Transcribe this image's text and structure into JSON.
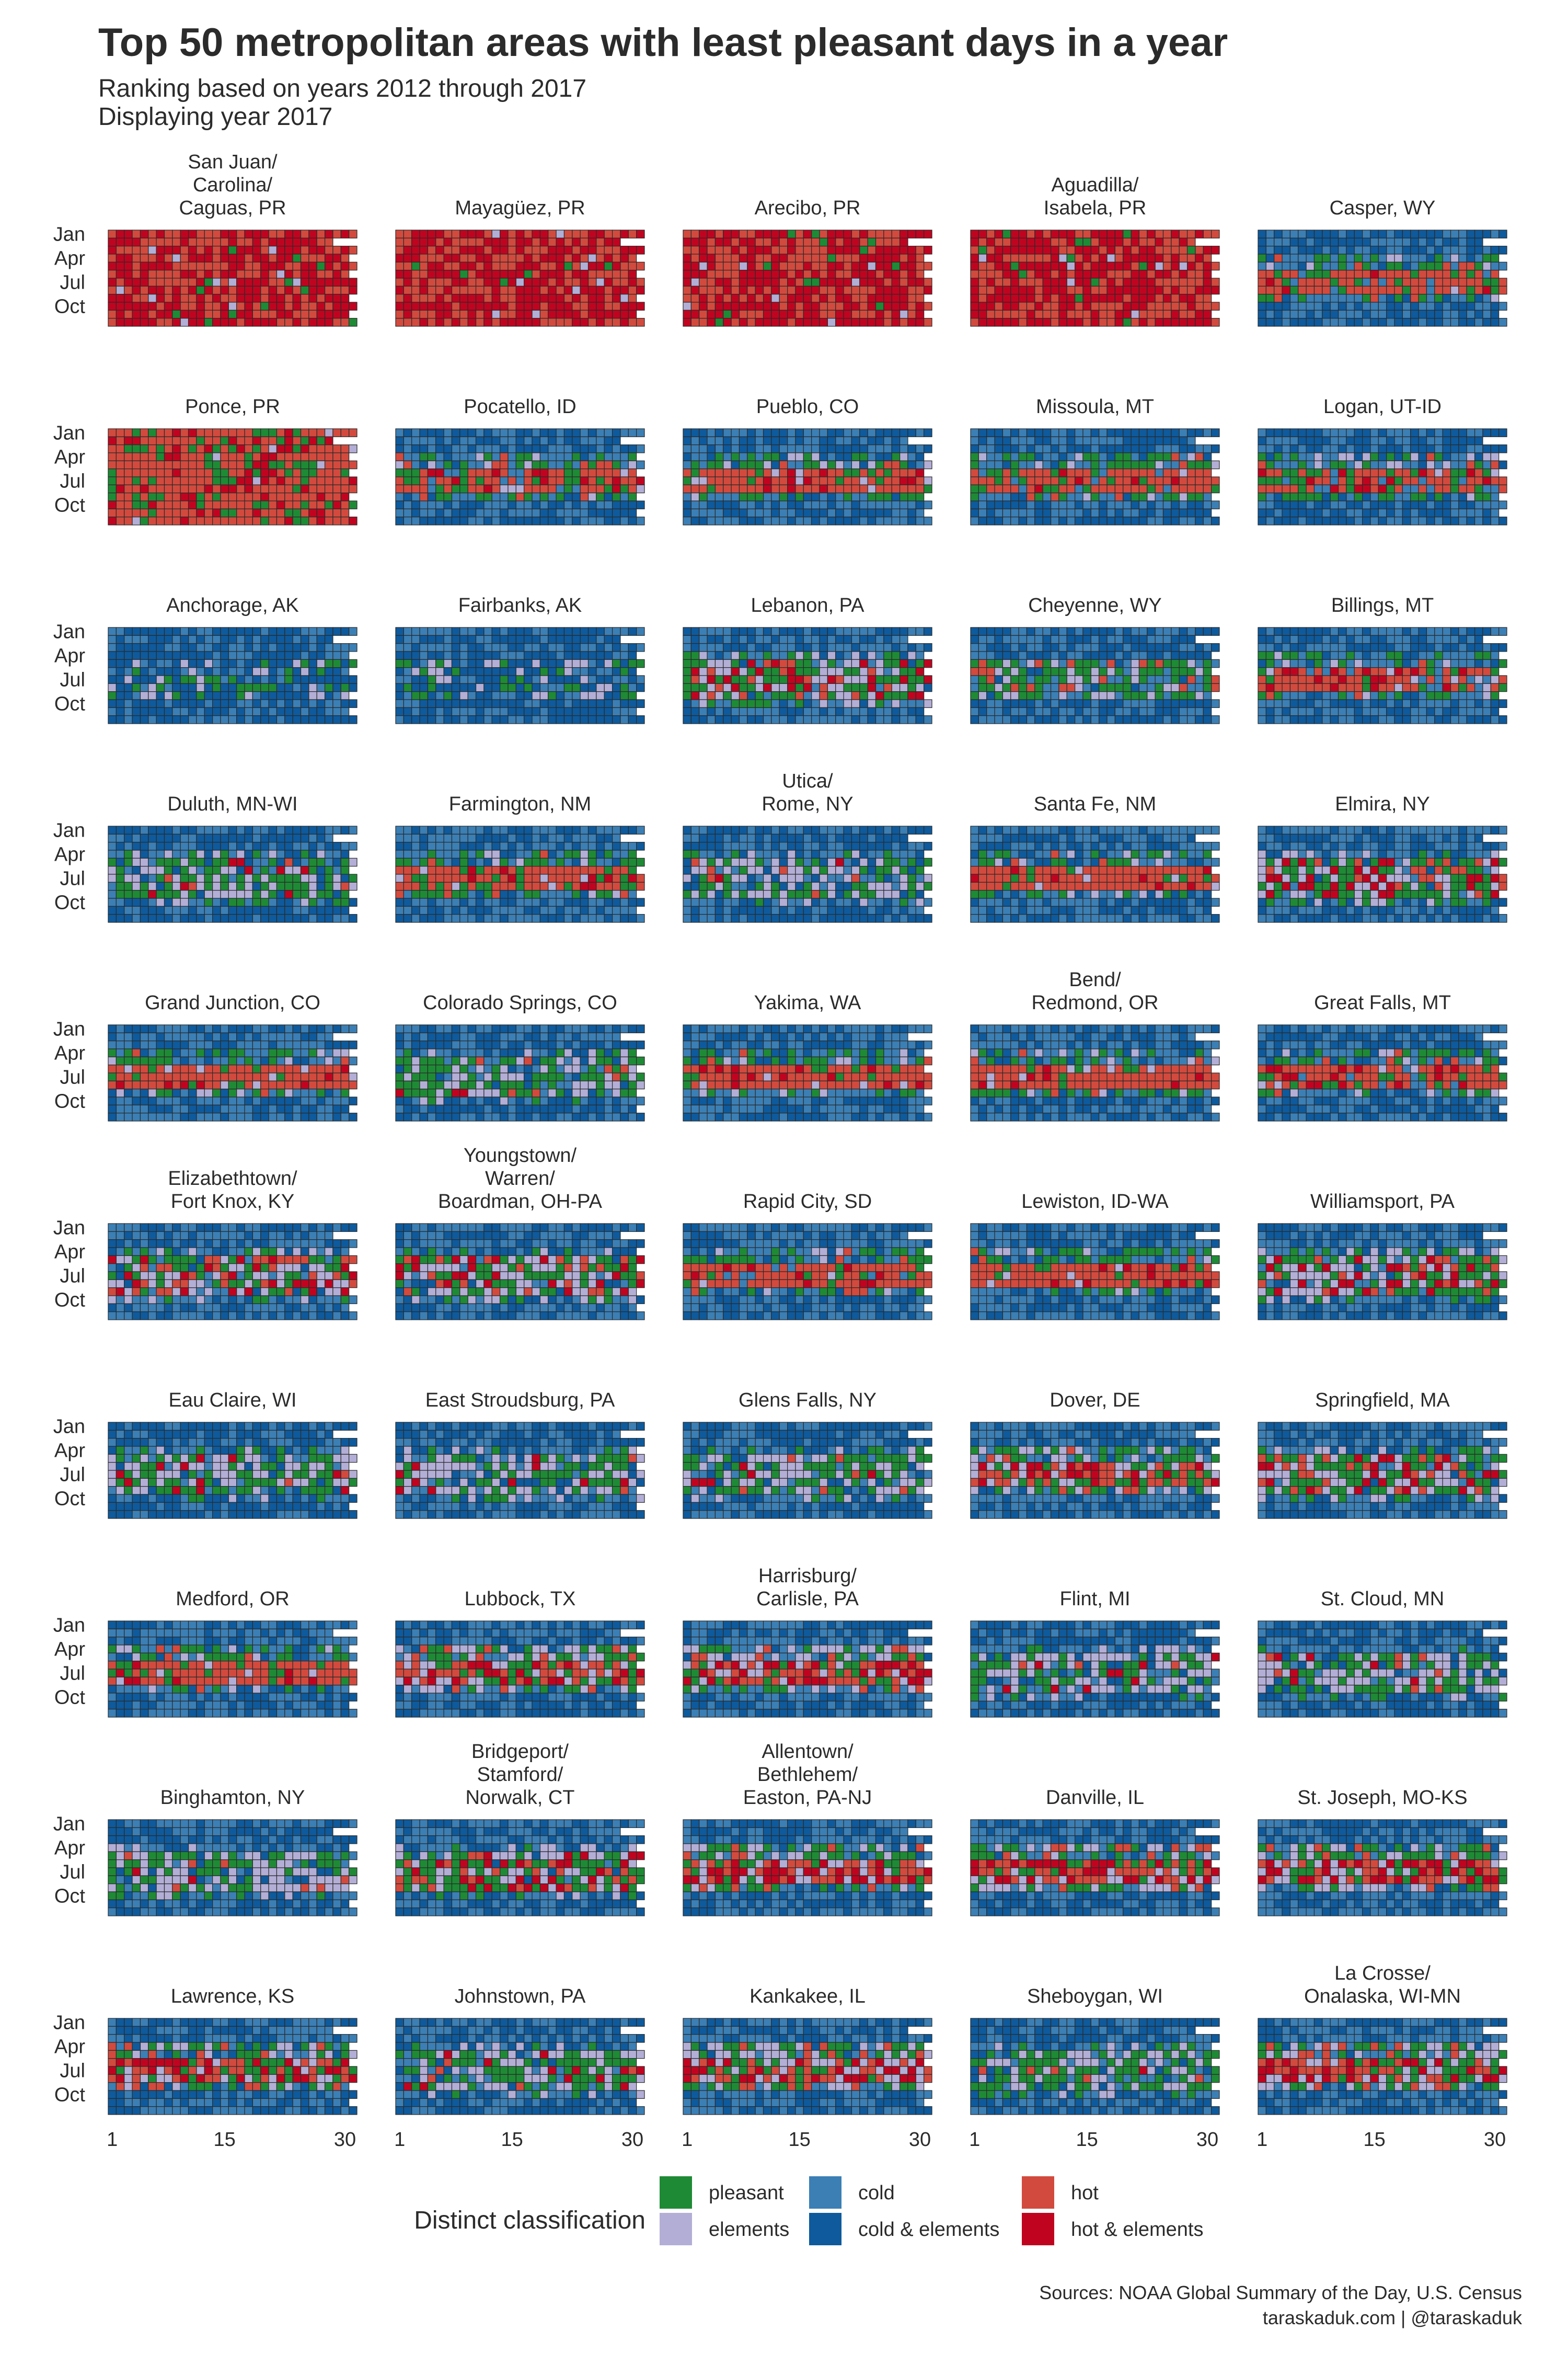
{
  "chart_data": {
    "type": "heatmap",
    "title": "Top 50 metropolitan areas with least pleasant days in a year",
    "subtitle_lines": [
      "Ranking based on years 2012 through 2017",
      "Displaying year 2017"
    ],
    "xlabel": "",
    "ylabel": "",
    "x_ticks": [
      "1",
      "15",
      "30"
    ],
    "y_ticks": [
      "Jan",
      "Apr",
      "Jul",
      "Oct"
    ],
    "x_range": [
      1,
      31
    ],
    "legend": {
      "title": "Distinct classification",
      "placement": "bottom",
      "items": [
        {
          "key": "pleasant",
          "label": "pleasant",
          "color": "#1e8a35"
        },
        {
          "key": "elements",
          "label": "elements",
          "color": "#b3aed6"
        },
        {
          "key": "cold",
          "label": "cold",
          "color": "#3b7fb5"
        },
        {
          "key": "cold_elements",
          "label": "cold & elements",
          "color": "#0e5a9c"
        },
        {
          "key": "hot",
          "label": "hot",
          "color": "#d24a3e"
        },
        {
          "key": "hot_elements",
          "label": "hot & elements",
          "color": "#c00420"
        }
      ]
    },
    "panel_profile_note_keys": [
      "pleasant",
      "elements",
      "cold",
      "cold_elements",
      "hot",
      "hot_elements"
    ],
    "panels": [
      {
        "name": "San Juan/ Carolina/ Caguas, PR",
        "profile": "tropical"
      },
      {
        "name": "Mayagüez, PR",
        "profile": "tropical"
      },
      {
        "name": "Arecibo, PR",
        "profile": "tropical"
      },
      {
        "name": "Aguadilla/ Isabela, PR",
        "profile": "tropical"
      },
      {
        "name": "Casper, WY",
        "profile": "cold_hot_band"
      },
      {
        "name": "Ponce, PR",
        "profile": "tropical_pleasant"
      },
      {
        "name": "Pocatello, ID",
        "profile": "cold_hot_band"
      },
      {
        "name": "Pueblo, CO",
        "profile": "mild_hot_band"
      },
      {
        "name": "Missoula, MT",
        "profile": "cold_hot_band"
      },
      {
        "name": "Logan, UT-ID",
        "profile": "cold_hot_band"
      },
      {
        "name": "Anchorage, AK",
        "profile": "arctic"
      },
      {
        "name": "Fairbanks, AK",
        "profile": "arctic"
      },
      {
        "name": "Lebanon, PA",
        "profile": "humid_mixed"
      },
      {
        "name": "Cheyenne, WY",
        "profile": "cold_green"
      },
      {
        "name": "Billings, MT",
        "profile": "cold_hot_band"
      },
      {
        "name": "Duluth, MN-WI",
        "profile": "cold_elements"
      },
      {
        "name": "Farmington, NM",
        "profile": "mild_hot_band"
      },
      {
        "name": "Utica/ Rome, NY",
        "profile": "cold_elements"
      },
      {
        "name": "Santa Fe, NM",
        "profile": "mild_hot_band"
      },
      {
        "name": "Elmira, NY",
        "profile": "humid_mixed"
      },
      {
        "name": "Grand Junction, CO",
        "profile": "mild_hot_band"
      },
      {
        "name": "Colorado Springs, CO",
        "profile": "cold_elements"
      },
      {
        "name": "Yakima, WA",
        "profile": "mild_hot_band"
      },
      {
        "name": "Bend/ Redmond, OR",
        "profile": "mild_hot_band"
      },
      {
        "name": "Great Falls, MT",
        "profile": "cold_hot_band"
      },
      {
        "name": "Elizabethtown/ Fort Knox, KY",
        "profile": "humid_mixed"
      },
      {
        "name": "Youngstown/ Warren/ Boardman, OH-PA",
        "profile": "humid_mixed"
      },
      {
        "name": "Rapid City, SD",
        "profile": "cold_hot_band"
      },
      {
        "name": "Lewiston, ID-WA",
        "profile": "mild_hot_band"
      },
      {
        "name": "Williamsport, PA",
        "profile": "humid_mixed"
      },
      {
        "name": "Eau Claire, WI",
        "profile": "cold_elements"
      },
      {
        "name": "East Stroudsburg, PA",
        "profile": "cold_elements"
      },
      {
        "name": "Glens Falls, NY",
        "profile": "cold_elements"
      },
      {
        "name": "Dover, DE",
        "profile": "humid_hot"
      },
      {
        "name": "Springfield, MA",
        "profile": "humid_mixed"
      },
      {
        "name": "Medford, OR",
        "profile": "mild_hot_band"
      },
      {
        "name": "Lubbock, TX",
        "profile": "humid_hot"
      },
      {
        "name": "Harrisburg/ Carlisle, PA",
        "profile": "humid_hot"
      },
      {
        "name": "Flint, MI",
        "profile": "cold_elements"
      },
      {
        "name": "St. Cloud, MN",
        "profile": "cold_elements"
      },
      {
        "name": "Binghamton, NY",
        "profile": "cold_elements"
      },
      {
        "name": "Bridgeport/ Stamford/ Norwalk, CT",
        "profile": "humid_mixed"
      },
      {
        "name": "Allentown/ Bethlehem/ Easton, PA-NJ",
        "profile": "humid_hot"
      },
      {
        "name": "Danville, IL",
        "profile": "humid_hot"
      },
      {
        "name": "St. Joseph, MO-KS",
        "profile": "humid_hot"
      },
      {
        "name": "Lawrence, KS",
        "profile": "humid_hot"
      },
      {
        "name": "Johnstown, PA",
        "profile": "cold_elements"
      },
      {
        "name": "Kankakee, IL",
        "profile": "humid_hot"
      },
      {
        "name": "Sheboygan, WI",
        "profile": "cold_elements"
      },
      {
        "name": "La Crosse/ Onalaska, WI-MN",
        "profile": "humid_hot"
      }
    ]
  },
  "caption": {
    "line1": "Sources: NOAA Global Summary of the Day, U.S. Census",
    "line2": "taraskaduk.com | @taraskaduk"
  }
}
